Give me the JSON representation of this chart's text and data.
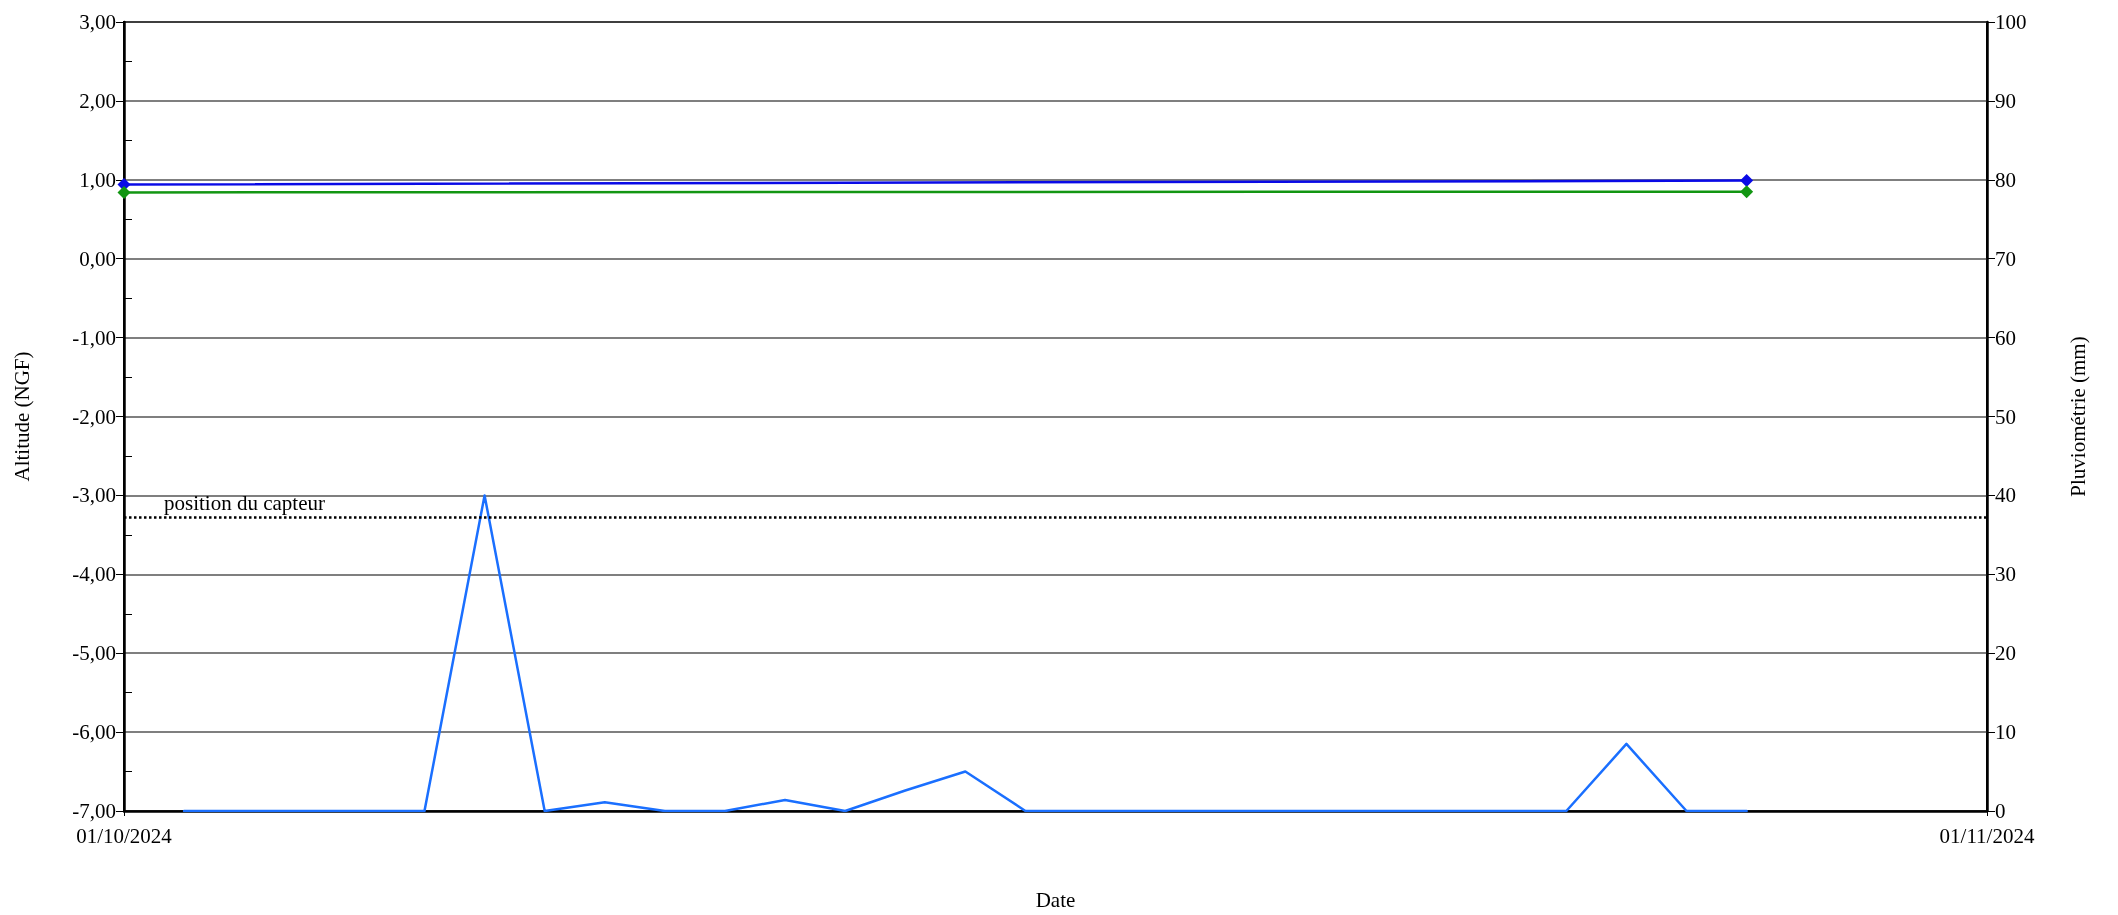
{
  "chart_data": {
    "type": "line",
    "xlabel": "Date",
    "ylabel": "Altitude (NGF)",
    "y2label": "Pluviométrie (mm)",
    "xlim": [
      "2024-10-01",
      "2024-11-01"
    ],
    "xticks": [
      {
        "value": "2024-10-01",
        "label": "01/10/2024"
      },
      {
        "value": "2024-11-01",
        "label": "01/11/2024"
      }
    ],
    "ylim": [
      -7,
      3
    ],
    "yticks": [
      {
        "value": -7,
        "label": "-7,00"
      },
      {
        "value": -6.5,
        "label": null
      },
      {
        "value": -6,
        "label": "-6,00"
      },
      {
        "value": -5.5,
        "label": null
      },
      {
        "value": -5,
        "label": "-5,00"
      },
      {
        "value": -4.5,
        "label": null
      },
      {
        "value": -4,
        "label": "-4,00"
      },
      {
        "value": -3.5,
        "label": null
      },
      {
        "value": -3,
        "label": "-3,00"
      },
      {
        "value": -2.5,
        "label": null
      },
      {
        "value": -2,
        "label": "-2,00"
      },
      {
        "value": -1.5,
        "label": null
      },
      {
        "value": -1,
        "label": "-1,00"
      },
      {
        "value": -0.5,
        "label": null
      },
      {
        "value": 0,
        "label": "0,00"
      },
      {
        "value": 0.5,
        "label": null
      },
      {
        "value": 1,
        "label": "1,00"
      },
      {
        "value": 1.5,
        "label": null
      },
      {
        "value": 2,
        "label": "2,00"
      },
      {
        "value": 2.5,
        "label": null
      },
      {
        "value": 3,
        "label": "3,00"
      }
    ],
    "y2lim": [
      0,
      100
    ],
    "y2ticks": [
      0,
      10,
      20,
      30,
      40,
      50,
      60,
      70,
      80,
      90,
      100
    ],
    "grid": "y",
    "line_style": "solid",
    "series": [
      {
        "color": "#0a0ae6",
        "marker": "diamond",
        "x": [
          "2024-10-01",
          "2024-10-28"
        ],
        "values": [
          0.94,
          0.99
        ]
      },
      {
        "color": "#129612",
        "marker": "diamond",
        "x": [
          "2024-10-01",
          "2024-10-28"
        ],
        "values": [
          0.84,
          0.85
        ]
      },
      {
        "color": "#1a6fff",
        "marker": "none",
        "axis": "y2",
        "x": [
          "2024-10-02",
          "2024-10-03",
          "2024-10-04",
          "2024-10-05",
          "2024-10-06",
          "2024-10-07",
          "2024-10-08",
          "2024-10-09",
          "2024-10-10",
          "2024-10-11",
          "2024-10-12",
          "2024-10-13",
          "2024-10-14",
          "2024-10-15",
          "2024-10-16",
          "2024-10-17",
          "2024-10-18",
          "2024-10-19",
          "2024-10-20",
          "2024-10-21",
          "2024-10-22",
          "2024-10-23",
          "2024-10-24",
          "2024-10-25",
          "2024-10-26",
          "2024-10-27",
          "2024-10-28"
        ],
        "values": [
          0,
          0,
          0,
          0,
          0,
          40,
          0,
          1.1,
          0,
          0,
          1.4,
          0,
          2.6,
          5,
          0,
          0,
          0,
          0,
          0,
          0,
          0,
          0,
          0,
          0,
          8.5,
          0,
          0
        ]
      }
    ],
    "ref_lines": [
      {
        "axis": "y",
        "value": -3.28,
        "label": "position du capteur",
        "color": "#000000",
        "line_style": "dotted"
      }
    ]
  }
}
